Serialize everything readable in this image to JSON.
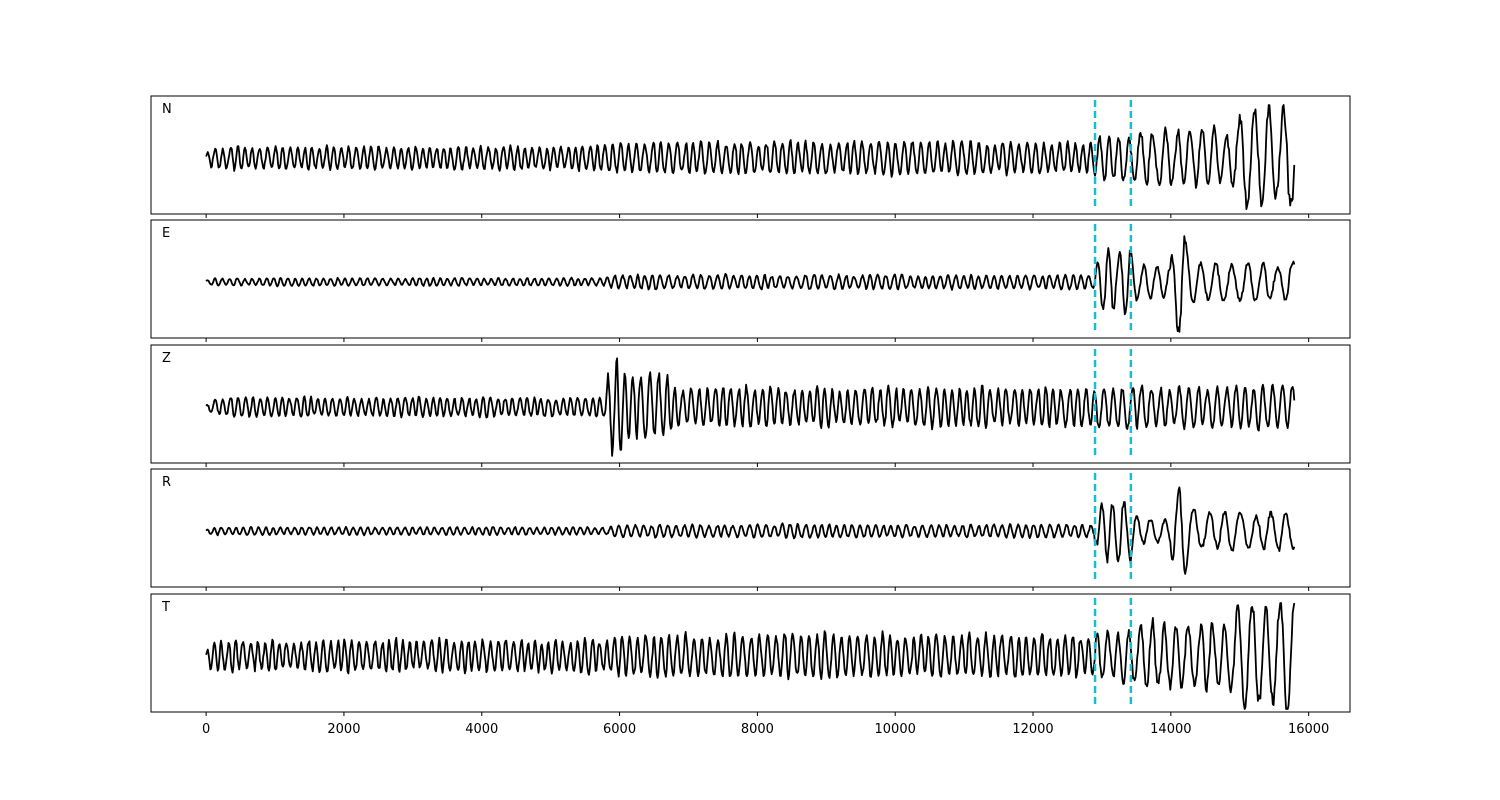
{
  "chart_data": {
    "type": "line",
    "title": "",
    "xlabel": "",
    "ylabel": "",
    "xlim": [
      -800,
      16600
    ],
    "xticks": [
      0,
      2000,
      4000,
      6000,
      8000,
      10000,
      12000,
      14000,
      16000
    ],
    "grid": false,
    "legend": "none",
    "trace_color": "#000000",
    "marker_color": "#17becf",
    "vertical_markers": [
      12900,
      13420
    ],
    "sample_range": [
      0,
      15800
    ],
    "panels": [
      {
        "label": "N",
        "segments": [
          {
            "x0": 0,
            "x1": 5800,
            "amp": 0.18,
            "period": 110
          },
          {
            "x0": 5800,
            "x1": 12900,
            "amp": 0.25,
            "period": 120
          },
          {
            "x0": 12900,
            "x1": 13420,
            "amp": 0.35,
            "period": 150
          },
          {
            "x0": 13420,
            "x1": 14900,
            "amp": 0.45,
            "period": 180
          },
          {
            "x0": 14900,
            "x1": 15800,
            "amp": 0.85,
            "period": 220
          }
        ]
      },
      {
        "label": "E",
        "segments": [
          {
            "x0": 0,
            "x1": 5800,
            "amp": 0.06,
            "period": 110
          },
          {
            "x0": 5800,
            "x1": 12900,
            "amp": 0.11,
            "period": 120
          },
          {
            "x0": 12900,
            "x1": 13420,
            "amp": 0.5,
            "period": 170
          },
          {
            "x0": 13420,
            "x1": 14000,
            "amp": 0.25,
            "period": 200
          },
          {
            "x0": 14000,
            "x1": 14200,
            "amp": 0.8,
            "period": 220
          },
          {
            "x0": 14200,
            "x1": 15800,
            "amp": 0.3,
            "period": 230
          }
        ]
      },
      {
        "label": "Z",
        "segments": [
          {
            "x0": 0,
            "x1": 5800,
            "amp": 0.15,
            "period": 110
          },
          {
            "x0": 5800,
            "x1": 6000,
            "amp": 0.9,
            "period": 130
          },
          {
            "x0": 6000,
            "x1": 6700,
            "amp": 0.5,
            "period": 130
          },
          {
            "x0": 6700,
            "x1": 12900,
            "amp": 0.3,
            "period": 120
          },
          {
            "x0": 12900,
            "x1": 15800,
            "amp": 0.33,
            "period": 140
          }
        ]
      },
      {
        "label": "R",
        "segments": [
          {
            "x0": 0,
            "x1": 5800,
            "amp": 0.06,
            "period": 110
          },
          {
            "x0": 5800,
            "x1": 12900,
            "amp": 0.1,
            "period": 120
          },
          {
            "x0": 12900,
            "x1": 13420,
            "amp": 0.5,
            "period": 170
          },
          {
            "x0": 13420,
            "x1": 14000,
            "amp": 0.2,
            "period": 200
          },
          {
            "x0": 14000,
            "x1": 14200,
            "amp": 0.9,
            "period": 220
          },
          {
            "x0": 14200,
            "x1": 15800,
            "amp": 0.3,
            "period": 230
          }
        ]
      },
      {
        "label": "T",
        "segments": [
          {
            "x0": 0,
            "x1": 5800,
            "amp": 0.25,
            "period": 110
          },
          {
            "x0": 5800,
            "x1": 12900,
            "amp": 0.33,
            "period": 120
          },
          {
            "x0": 12900,
            "x1": 13420,
            "amp": 0.4,
            "period": 150
          },
          {
            "x0": 13420,
            "x1": 14900,
            "amp": 0.5,
            "period": 180
          },
          {
            "x0": 14900,
            "x1": 15800,
            "amp": 0.85,
            "period": 220
          }
        ]
      }
    ]
  }
}
